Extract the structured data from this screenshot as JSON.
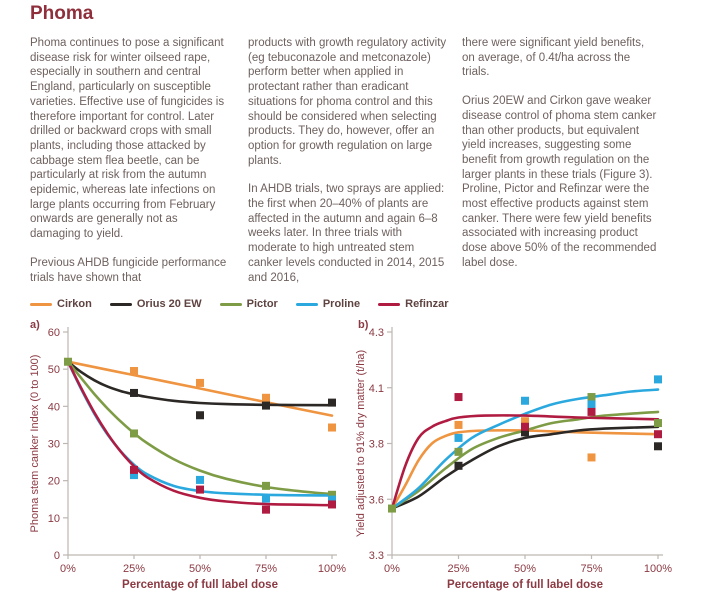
{
  "page": {
    "title": "Phoma"
  },
  "columns": [
    {
      "paragraphs": [
        "Phoma continues to pose a significant disease risk for winter oilseed rape, especially in southern and central England, particularly on susceptible varieties. Effective use of fungicides is therefore important for control. Later drilled or backward crops with small plants, including those attacked by cabbage stem flea beetle, can be particularly at risk from the autumn epidemic, whereas late infections on large plants occurring from February onwards are generally not as damaging to yield.",
        "Previous AHDB fungicide performance trials have shown that"
      ]
    },
    {
      "paragraphs": [
        "products with growth regulatory activity (eg tebuconazole and metconazole) perform better when applied in protectant rather than eradicant situations for phoma control and this should be considered when selecting products. They do, however, offer an option for growth regulation on large plants.",
        "In AHDB trials, two sprays are applied: the first when 20–40% of plants are affected in the autumn and again 6–8 weeks later. In three trials with moderate to high untreated stem canker levels conducted in 2014, 2015 and 2016,"
      ]
    },
    {
      "paragraphs": [
        "there were significant yield benefits, on average, of 0.4t/ha across the trials.",
        "Orius 20EW and Cirkon gave weaker disease control of phoma stem canker than other products, but equivalent yield increases, suggesting some benefit from growth regulation on the larger plants in these trials (Figure 3). Proline, Pictor and Refinzar were the most effective products against stem canker. There were few yield benefits associated with increasing product dose above 50% of the recommended label dose."
      ]
    }
  ],
  "legend": {
    "items": [
      {
        "label": "Cirkon",
        "color": "#EF9440"
      },
      {
        "label": "Orius 20 EW",
        "color": "#2B2826"
      },
      {
        "label": "Pictor",
        "color": "#7E9C45"
      },
      {
        "label": "Proline",
        "color": "#2BA9DF"
      },
      {
        "label": "Refinzar",
        "color": "#B01B41"
      }
    ]
  },
  "colors": {
    "title": "#8E2F3B",
    "body_text": "#6E615E",
    "legend_text": "#5E4340",
    "axis_text": "#8B3A43",
    "axis_line": "#BDB6B1"
  },
  "chart_data": [
    {
      "id": "a",
      "panel_label": "a)",
      "type": "scatter",
      "xlabel": "Percentage of full label dose",
      "ylabel": "Phoma stem canker Index (0 to 100)",
      "x_values": [
        0,
        25,
        50,
        75,
        100
      ],
      "x_tick_labels": [
        "0%",
        "25%",
        "50%",
        "75%",
        "100%"
      ],
      "y_ticks": [
        0,
        10,
        20,
        30,
        40,
        50,
        60
      ],
      "ylim": [
        0,
        60
      ],
      "grid": false,
      "series": [
        {
          "name": "Cirkon",
          "color": "#EF9440",
          "points": [
            [
              25,
              49.5
            ],
            [
              50,
              46.3
            ],
            [
              75,
              42.3
            ],
            [
              100,
              34.3
            ]
          ],
          "curve": [
            [
              0,
              52
            ],
            [
              25,
              48.4
            ],
            [
              50,
              44.8
            ],
            [
              75,
              41.1
            ],
            [
              100,
              37.5
            ]
          ]
        },
        {
          "name": "Orius 20 EW",
          "color": "#2B2826",
          "points": [
            [
              25,
              43.6
            ],
            [
              50,
              37.6
            ],
            [
              75,
              40.2
            ],
            [
              100,
              41.0
            ]
          ],
          "curve": [
            [
              0,
              52
            ],
            [
              5,
              49.2
            ],
            [
              10,
              47.0
            ],
            [
              15,
              45.3
            ],
            [
              20,
              44.1
            ],
            [
              25,
              43.2
            ],
            [
              30,
              42.5
            ],
            [
              40,
              41.5
            ],
            [
              50,
              40.9
            ],
            [
              60,
              40.6
            ],
            [
              75,
              40.4
            ],
            [
              100,
              40.3
            ]
          ]
        },
        {
          "name": "Pictor",
          "color": "#7E9C45",
          "points": [
            [
              0,
              52
            ],
            [
              25,
              32.7
            ],
            [
              75,
              18.6
            ],
            [
              100,
              16.2
            ]
          ],
          "curve": [
            [
              0,
              52
            ],
            [
              5,
              47.6
            ],
            [
              10,
              43.3
            ],
            [
              15,
              39.4
            ],
            [
              20,
              35.9
            ],
            [
              25,
              32.8
            ],
            [
              30,
              30.1
            ],
            [
              40,
              25.8
            ],
            [
              50,
              22.7
            ],
            [
              60,
              20.5
            ],
            [
              75,
              18.3
            ],
            [
              90,
              17.0
            ],
            [
              100,
              16.4
            ]
          ]
        },
        {
          "name": "Proline",
          "color": "#2BA9DF",
          "points": [
            [
              25,
              21.5
            ],
            [
              50,
              20.2
            ],
            [
              75,
              15.2
            ],
            [
              100,
              14.9
            ]
          ],
          "curve": [
            [
              0,
              52
            ],
            [
              5,
              44.6
            ],
            [
              10,
              38.0
            ],
            [
              15,
              32.4
            ],
            [
              20,
              27.9
            ],
            [
              25,
              24.3
            ],
            [
              30,
              21.7
            ],
            [
              40,
              18.6
            ],
            [
              50,
              17.2
            ],
            [
              60,
              16.6
            ],
            [
              75,
              16.2
            ],
            [
              100,
              16.0
            ]
          ]
        },
        {
          "name": "Refinzar",
          "color": "#B01B41",
          "points": [
            [
              25,
              22.9
            ],
            [
              50,
              17.6
            ],
            [
              75,
              12.2
            ],
            [
              100,
              13.6
            ]
          ],
          "curve": [
            [
              0,
              52
            ],
            [
              5,
              44.9
            ],
            [
              10,
              38.3
            ],
            [
              15,
              32.6
            ],
            [
              20,
              27.8
            ],
            [
              25,
              23.9
            ],
            [
              30,
              20.9
            ],
            [
              40,
              17.3
            ],
            [
              50,
              15.4
            ],
            [
              60,
              14.4
            ],
            [
              75,
              13.7
            ],
            [
              100,
              13.4
            ]
          ]
        }
      ]
    },
    {
      "id": "b",
      "panel_label": "b)",
      "type": "scatter",
      "xlabel": "Percentage of full label dose",
      "ylabel": "Yield adjusted to 91% dry matter (t/ha)",
      "x_values": [
        0,
        25,
        50,
        75,
        100
      ],
      "x_tick_labels": [
        "0%",
        "25%",
        "50%",
        "75%",
        "100%"
      ],
      "y_ticks": [
        3.3,
        3.6,
        3.8,
        4.1,
        4.3
      ],
      "ylim": [
        3.3,
        4.3
      ],
      "grid": false,
      "series": [
        {
          "name": "Cirkon",
          "color": "#EF9440",
          "points": [
            [
              25,
              3.9
            ],
            [
              50,
              3.92
            ],
            [
              75,
              3.75
            ]
          ],
          "curve": [
            [
              0,
              3.55
            ],
            [
              5,
              3.65
            ],
            [
              10,
              3.74
            ],
            [
              15,
              3.8
            ],
            [
              20,
              3.84
            ],
            [
              25,
              3.86
            ],
            [
              35,
              3.87
            ],
            [
              50,
              3.87
            ],
            [
              70,
              3.86
            ],
            [
              100,
              3.85
            ]
          ]
        },
        {
          "name": "Orius 20 EW",
          "color": "#2B2826",
          "points": [
            [
              25,
              3.72
            ],
            [
              50,
              3.86
            ],
            [
              100,
              3.79
            ]
          ],
          "curve": [
            [
              0,
              3.55
            ],
            [
              10,
              3.61
            ],
            [
              20,
              3.68
            ],
            [
              30,
              3.74
            ],
            [
              40,
              3.79
            ],
            [
              50,
              3.83
            ],
            [
              60,
              3.85
            ],
            [
              70,
              3.87
            ],
            [
              80,
              3.88
            ],
            [
              100,
              3.89
            ]
          ]
        },
        {
          "name": "Pictor",
          "color": "#7E9C45",
          "points": [
            [
              0,
              3.55
            ],
            [
              25,
              3.77
            ],
            [
              75,
              4.05
            ],
            [
              100,
              3.91
            ]
          ],
          "curve": [
            [
              0,
              3.55
            ],
            [
              10,
              3.63
            ],
            [
              20,
              3.71
            ],
            [
              30,
              3.78
            ],
            [
              40,
              3.83
            ],
            [
              50,
              3.87
            ],
            [
              60,
              3.91
            ],
            [
              70,
              3.93
            ],
            [
              80,
              3.95
            ],
            [
              100,
              3.97
            ]
          ]
        },
        {
          "name": "Proline",
          "color": "#2BA9DF",
          "points": [
            [
              25,
              3.83
            ],
            [
              50,
              4.03
            ],
            [
              75,
              4.01
            ],
            [
              100,
              4.13
            ]
          ],
          "curve": [
            [
              0,
              3.55
            ],
            [
              10,
              3.64
            ],
            [
              20,
              3.74
            ],
            [
              30,
              3.83
            ],
            [
              40,
              3.9
            ],
            [
              50,
              3.96
            ],
            [
              60,
              4.01
            ],
            [
              70,
              4.04
            ],
            [
              80,
              4.06
            ],
            [
              90,
              4.08
            ],
            [
              100,
              4.09
            ]
          ]
        },
        {
          "name": "Refinzar",
          "color": "#B01B41",
          "points": [
            [
              25,
              4.05
            ],
            [
              50,
              3.89
            ],
            [
              75,
              3.97
            ],
            [
              100,
              3.85
            ]
          ],
          "curve": [
            [
              0,
              3.55
            ],
            [
              5,
              3.72
            ],
            [
              10,
              3.83
            ],
            [
              15,
              3.89
            ],
            [
              20,
              3.92
            ],
            [
              25,
              3.94
            ],
            [
              35,
              3.95
            ],
            [
              50,
              3.95
            ],
            [
              70,
              3.94
            ],
            [
              100,
              3.93
            ]
          ]
        }
      ]
    }
  ]
}
